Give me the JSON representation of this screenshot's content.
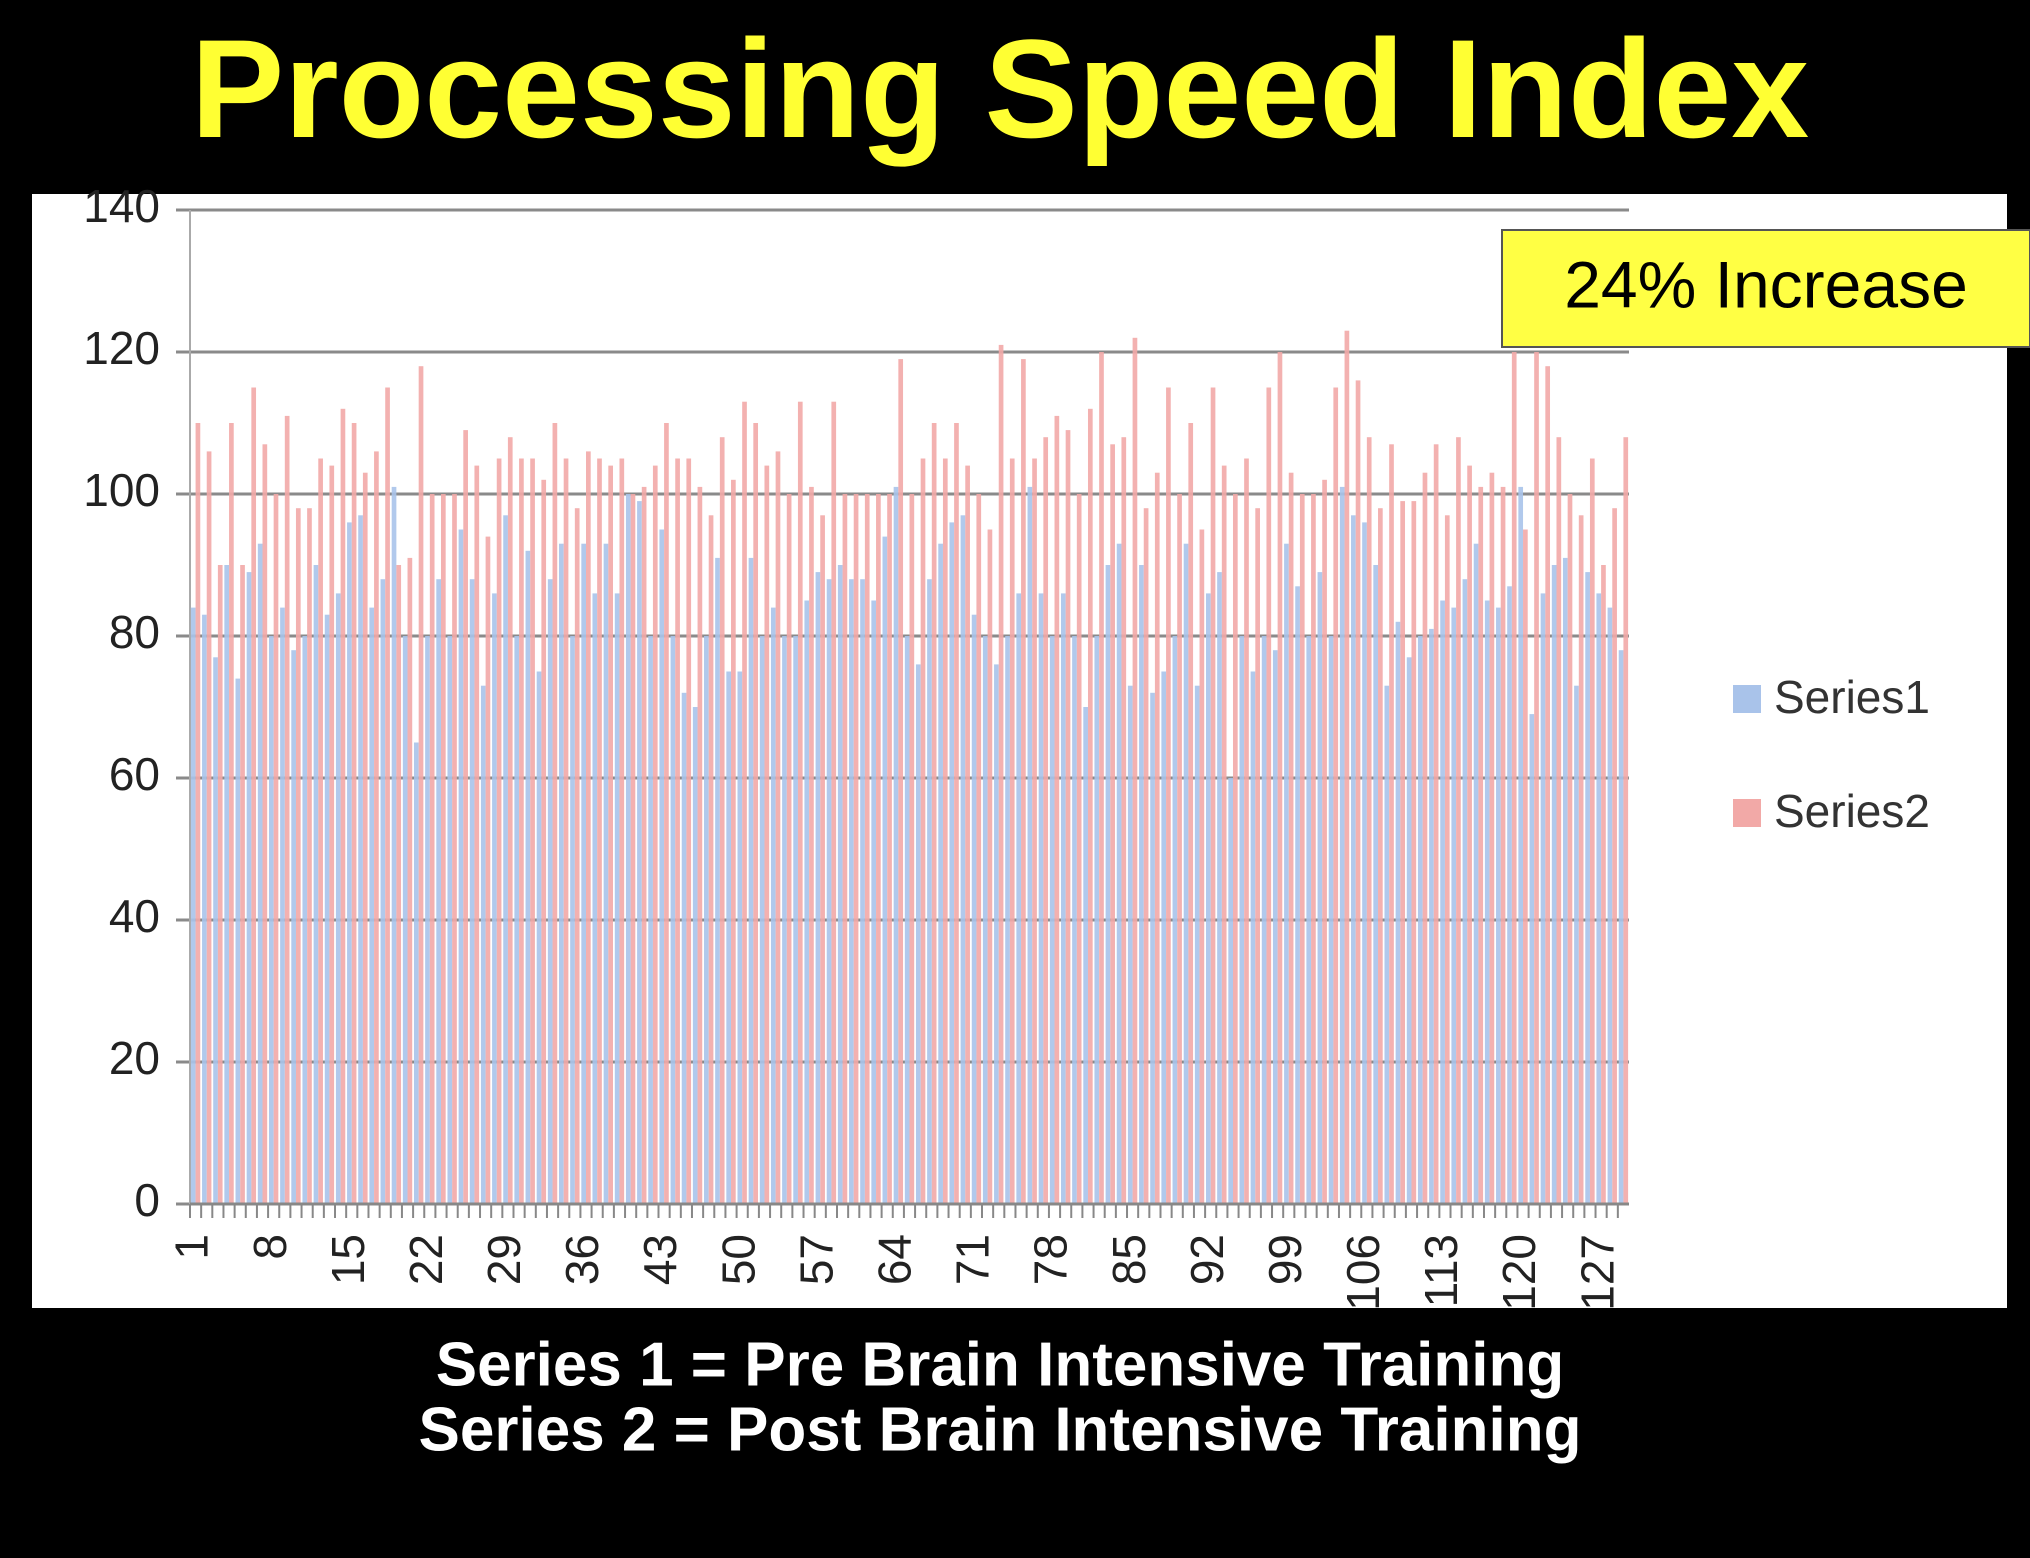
{
  "chart_data": {
    "type": "bar",
    "title": "Processing Speed Index",
    "annotation": "24% Increase",
    "footnotes": [
      "Series 1 = Pre Brain Intensive Training",
      "Series 2 = Post Brain Intensive Training"
    ],
    "categories": [
      "1",
      null,
      null,
      null,
      null,
      null,
      null,
      "8",
      null,
      null,
      null,
      null,
      null,
      null,
      "15",
      null,
      null,
      null,
      null,
      null,
      null,
      "22",
      null,
      null,
      null,
      null,
      null,
      null,
      "29",
      null,
      null,
      null,
      null,
      null,
      null,
      "36",
      null,
      null,
      null,
      null,
      null,
      null,
      "43",
      null,
      null,
      null,
      null,
      null,
      null,
      "50",
      null,
      null,
      null,
      null,
      null,
      null,
      "57",
      null,
      null,
      null,
      null,
      null,
      null,
      "64",
      null,
      null,
      null,
      null,
      null,
      null,
      "71",
      null,
      null,
      null,
      null,
      null,
      null,
      "78",
      null,
      null,
      null,
      null,
      null,
      null,
      "85",
      null,
      null,
      null,
      null,
      null,
      null,
      "92",
      null,
      null,
      null,
      null,
      null,
      null,
      "99",
      null,
      null,
      null,
      null,
      null,
      null,
      "106",
      null,
      null,
      null,
      null,
      null,
      null,
      "113",
      null,
      null,
      null,
      null,
      null,
      null,
      "120",
      null,
      null,
      null,
      null,
      null,
      null,
      "127",
      null,
      null
    ],
    "series": [
      {
        "name": "Series1",
        "color": "#a9c3ea",
        "values": [
          84,
          83,
          77,
          90,
          74,
          89,
          93,
          80,
          84,
          78,
          80,
          90,
          83,
          86,
          96,
          97,
          84,
          88,
          101,
          80,
          65,
          80,
          88,
          80,
          95,
          88,
          73,
          86,
          97,
          80,
          92,
          75,
          88,
          93,
          80,
          93,
          86,
          93,
          86,
          100,
          99,
          80,
          95,
          80,
          72,
          70,
          80,
          91,
          75,
          75,
          91,
          80,
          84,
          80,
          80,
          85,
          89,
          88,
          90,
          88,
          88,
          85,
          94,
          101,
          80,
          76,
          88,
          93,
          96,
          97,
          83,
          80,
          76,
          80,
          86,
          101,
          86,
          80,
          86,
          80,
          70,
          80,
          90,
          93,
          73,
          90,
          72,
          75,
          80,
          93,
          73,
          86,
          89,
          60,
          80,
          75,
          80,
          78,
          93,
          87,
          80,
          89,
          80,
          101,
          97,
          96,
          90,
          73,
          82,
          77,
          80,
          81,
          85,
          84,
          88,
          93,
          85,
          84,
          87,
          101,
          69,
          86,
          90,
          91,
          73,
          89,
          86,
          84,
          78
        ]
      },
      {
        "name": "Series2",
        "color": "#f2a9a7",
        "values": [
          110,
          106,
          90,
          110,
          90,
          115,
          107,
          100,
          111,
          98,
          98,
          105,
          104,
          112,
          110,
          103,
          106,
          115,
          90,
          91,
          118,
          100,
          100,
          100,
          109,
          104,
          94,
          105,
          108,
          105,
          105,
          102,
          110,
          105,
          98,
          106,
          105,
          104,
          105,
          100,
          101,
          104,
          110,
          105,
          105,
          101,
          97,
          108,
          102,
          113,
          110,
          104,
          106,
          100,
          113,
          101,
          97,
          113,
          100,
          100,
          100,
          100,
          100,
          119,
          100,
          105,
          110,
          105,
          110,
          104,
          100,
          95,
          121,
          105,
          119,
          105,
          108,
          111,
          109,
          100,
          112,
          120,
          107,
          108,
          122,
          98,
          103,
          115,
          100,
          110,
          95,
          115,
          104,
          100,
          105,
          98,
          115,
          120,
          103,
          100,
          100,
          102,
          115,
          123,
          116,
          108,
          98,
          107,
          99,
          99,
          103,
          107,
          97,
          108,
          104,
          101,
          103,
          101,
          120,
          95,
          120,
          118,
          108,
          100,
          97,
          105,
          90,
          98,
          108
        ]
      }
    ],
    "ylim": [
      0,
      140
    ],
    "yticks": [
      0,
      20,
      40,
      60,
      80,
      100,
      120,
      140
    ],
    "grid": true,
    "legend": "right"
  }
}
